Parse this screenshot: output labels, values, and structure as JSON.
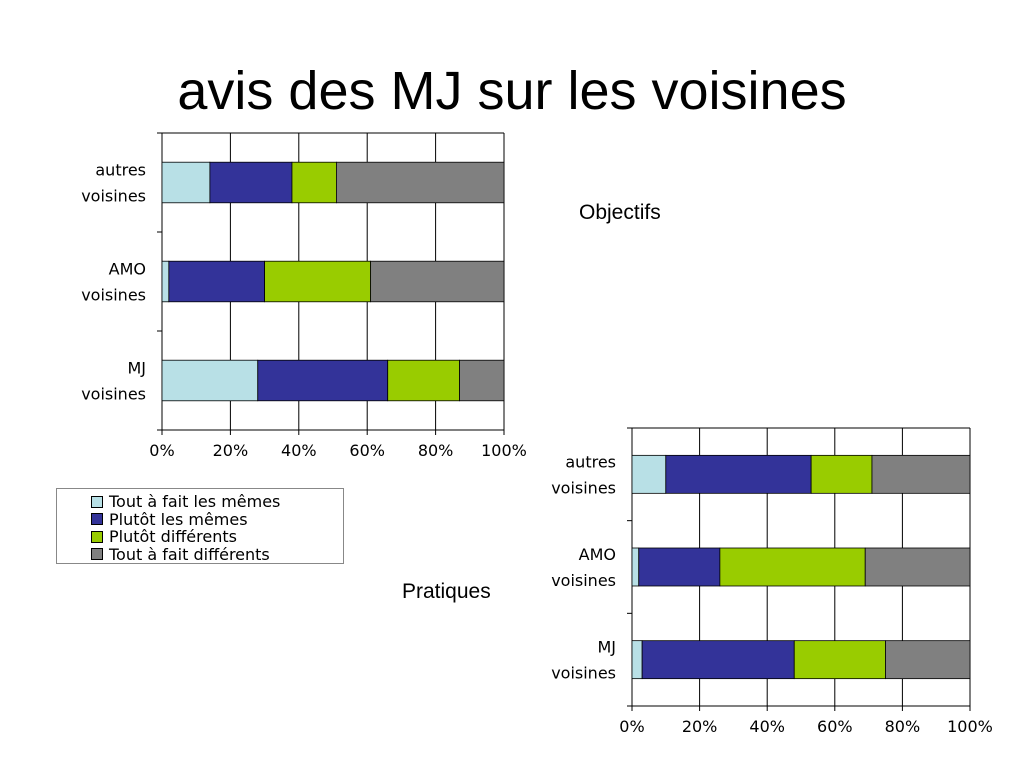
{
  "slide": {
    "title": "avis des MJ sur les voisines",
    "caption_objectifs": "Objectifs",
    "caption_pratiques": "Pratiques"
  },
  "chart_data": [
    {
      "type": "bar",
      "orientation": "horizontal",
      "stacked": "percent",
      "title": "",
      "categories": [
        "autres voisines",
        "AMO voisines",
        "MJ voisines"
      ],
      "series": [
        {
          "name": "Tout à fait les mêmes",
          "color": "#b8e0e6",
          "values": [
            14,
            2,
            28
          ]
        },
        {
          "name": "Plutôt les mêmes",
          "color": "#333399",
          "values": [
            24,
            28,
            38
          ]
        },
        {
          "name": "Plutôt différents",
          "color": "#99cc00",
          "values": [
            13,
            31,
            21
          ]
        },
        {
          "name": "Tout à fait différents",
          "color": "#808080",
          "values": [
            49,
            39,
            13
          ]
        }
      ],
      "xlim": [
        0,
        100
      ],
      "xticks": [
        "0%",
        "20%",
        "40%",
        "60%",
        "80%",
        "100%"
      ],
      "grid": true,
      "legend": "bottom-left"
    },
    {
      "type": "bar",
      "orientation": "horizontal",
      "stacked": "percent",
      "title": "",
      "categories": [
        "autres voisines",
        "AMO voisines",
        "MJ voisines"
      ],
      "series": [
        {
          "name": "Tout à fait les mêmes",
          "color": "#b8e0e6",
          "values": [
            10,
            2,
            3
          ]
        },
        {
          "name": "Plutôt les mêmes",
          "color": "#333399",
          "values": [
            43,
            24,
            45
          ]
        },
        {
          "name": "Plutôt différents",
          "color": "#99cc00",
          "values": [
            18,
            43,
            27
          ]
        },
        {
          "name": "Tout à fait différents",
          "color": "#808080",
          "values": [
            29,
            31,
            25
          ]
        }
      ],
      "xlim": [
        0,
        100
      ],
      "xticks": [
        "0%",
        "20%",
        "40%",
        "60%",
        "80%",
        "100%"
      ],
      "grid": true,
      "legend": "none"
    }
  ]
}
